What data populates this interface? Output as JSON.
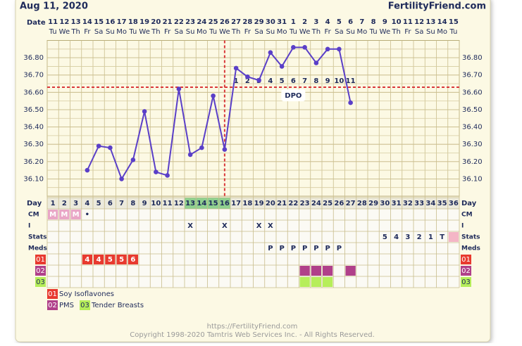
{
  "header": {
    "date": "Aug 11, 2020",
    "brand": "FertilityFriend.com"
  },
  "footer": {
    "url": "https://FertilityFriend.com",
    "copyright": "Copyright 1998-2020 Tamtris Web Services Inc. - All Rights Reserved."
  },
  "chart_data": {
    "type": "line",
    "date_label": "Date",
    "categories": [
      "11",
      "12",
      "13",
      "14",
      "15",
      "16",
      "17",
      "18",
      "19",
      "20",
      "21",
      "22",
      "23",
      "24",
      "25",
      "26",
      "27",
      "28",
      "29",
      "30",
      "31",
      "1",
      "2",
      "3",
      "4",
      "5",
      "6",
      "7",
      "8",
      "9",
      "10",
      "11",
      "12",
      "13",
      "14",
      "15"
    ],
    "weekdays": [
      "Tu",
      "We",
      "Th",
      "Fr",
      "Sa",
      "Su",
      "Mo",
      "Tu",
      "We",
      "Th",
      "Fr",
      "Sa",
      "Su",
      "Mo",
      "Tu",
      "We",
      "Th",
      "Fr",
      "Sa",
      "Su",
      "Mo",
      "Tu",
      "We",
      "Th",
      "Fr",
      "Sa",
      "Su",
      "Mo",
      "Tu",
      "We",
      "Th",
      "Fr",
      "Sa",
      "Su",
      "Mo",
      "Tu"
    ],
    "values": [
      null,
      null,
      null,
      36.15,
      36.29,
      36.28,
      36.1,
      36.21,
      36.49,
      36.14,
      36.12,
      36.62,
      36.24,
      36.28,
      36.58,
      36.27,
      36.74,
      36.69,
      36.67,
      36.83,
      36.75,
      36.86,
      36.86,
      36.77,
      36.85,
      36.85,
      36.54,
      null,
      null,
      null,
      null,
      null,
      null,
      null,
      null,
      null
    ],
    "color": "#5a3fc8",
    "ylim": [
      36.0,
      36.9
    ],
    "yticks": [
      {
        "value": 36.1,
        "label": "36.10"
      },
      {
        "value": 36.2,
        "label": "36.20"
      },
      {
        "value": 36.3,
        "label": "36.30"
      },
      {
        "value": 36.4,
        "label": "36.40"
      },
      {
        "value": 36.5,
        "label": "36.50"
      },
      {
        "value": 36.6,
        "label": "36.60"
      },
      {
        "value": 36.7,
        "label": "36.70"
      },
      {
        "value": 36.8,
        "label": "36.80"
      }
    ],
    "grid": true,
    "coverline": 36.63,
    "coverline_color": "#d9383a",
    "ovulation_day": 16,
    "dpo_title": "DPO",
    "dpo_labels": [
      1,
      2,
      3,
      4,
      5,
      6,
      7,
      8,
      9,
      10,
      11
    ],
    "day_label": "Day",
    "cycle_days": [
      1,
      2,
      3,
      4,
      5,
      6,
      7,
      8,
      9,
      10,
      11,
      12,
      13,
      14,
      15,
      16,
      17,
      18,
      19,
      20,
      21,
      22,
      23,
      24,
      25,
      26,
      27,
      28,
      29,
      30,
      31,
      32,
      33,
      34,
      35,
      36
    ],
    "fertile_days": [
      13,
      14,
      15,
      16
    ],
    "fertile_color": "#8fd08f",
    "rows": [
      {
        "label": "CM",
        "color": "#e9a6c6",
        "marked": [
          1,
          2,
          3
        ],
        "entries": [
          {
            "day": 1,
            "text": "M"
          },
          {
            "day": 2,
            "text": "M"
          },
          {
            "day": 3,
            "text": "M"
          },
          {
            "day": 4,
            "text": "•"
          }
        ]
      },
      {
        "label": "I",
        "entries": [
          {
            "day": 13,
            "text": "X"
          },
          {
            "day": 16,
            "text": "X"
          },
          {
            "day": 19,
            "text": "X"
          },
          {
            "day": 20,
            "text": "X"
          }
        ]
      },
      {
        "label": "Stats",
        "color": "#f4b6c6",
        "marked": [
          36
        ],
        "entries": [
          {
            "day": 30,
            "text": "5"
          },
          {
            "day": 31,
            "text": "4"
          },
          {
            "day": 32,
            "text": "3"
          },
          {
            "day": 33,
            "text": "2"
          },
          {
            "day": 34,
            "text": "1"
          },
          {
            "day": 35,
            "text": "T"
          }
        ]
      },
      {
        "label": "Meds",
        "entries": [
          {
            "day": 20,
            "text": "P"
          },
          {
            "day": 21,
            "text": "P"
          },
          {
            "day": 22,
            "text": "P"
          },
          {
            "day": 23,
            "text": "P"
          },
          {
            "day": 24,
            "text": "P"
          },
          {
            "day": 25,
            "text": "P"
          },
          {
            "day": 26,
            "text": "P"
          }
        ]
      },
      {
        "label": "01",
        "color": "#e83a2f",
        "marked": [
          4,
          5,
          6,
          7,
          8
        ],
        "entries": [
          {
            "day": 4,
            "text": "4"
          },
          {
            "day": 5,
            "text": "4"
          },
          {
            "day": 6,
            "text": "5"
          },
          {
            "day": 7,
            "text": "5"
          },
          {
            "day": 8,
            "text": "6"
          }
        ]
      },
      {
        "label": "02",
        "color": "#b0408a",
        "marked": [
          23,
          24,
          25,
          27
        ]
      },
      {
        "label": "03",
        "color": "#b6ee5a",
        "marked": [
          23,
          24,
          25
        ]
      }
    ],
    "legend": [
      {
        "code": "01",
        "label": "Soy Isoflavones",
        "color": "#e83a2f"
      },
      {
        "code": "02",
        "label": "PMS",
        "color": "#b0408a"
      },
      {
        "code": "03",
        "label": "Tender Breasts",
        "color": "#b6ee5a"
      }
    ]
  }
}
